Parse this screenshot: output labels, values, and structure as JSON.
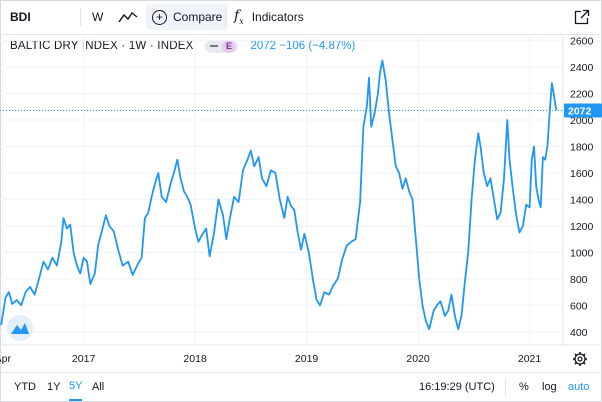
{
  "toolbar": {
    "symbol": "BDI",
    "interval": "W",
    "chart_type_icon": "line-chart-icon",
    "compare_label": "Compare",
    "indicators_label": "Indicators",
    "fx": "f",
    "fx_sub": "x"
  },
  "legend": {
    "title": "BALTIC DRY INDEX · 1W · INDEX",
    "badge": "E",
    "values": "2072 −106 (−4.87%)"
  },
  "colors": {
    "line": "#2196f3",
    "grid": "#f0f3fa",
    "axis_text": "#131722"
  },
  "last_price": "2072",
  "bottom": {
    "ranges": [
      "YTD",
      "1Y",
      "5Y",
      "All"
    ],
    "active_range": "5Y",
    "time": "16:19:29 (UTC)",
    "percent": "%",
    "log": "log",
    "auto": "auto"
  },
  "chart_data": {
    "type": "line",
    "title": "BALTIC DRY INDEX · 1W · INDEX",
    "xlabel": "",
    "ylabel": "",
    "ylim": [
      300,
      2650
    ],
    "xlim": [
      2016.25,
      2021.3
    ],
    "x_tick_labels": [
      {
        "label": "Apr",
        "x": 2016.27
      },
      {
        "label": "2017",
        "x": 2017.0
      },
      {
        "label": "2018",
        "x": 2018.0
      },
      {
        "label": "2019",
        "x": 2019.0
      },
      {
        "label": "2020",
        "x": 2020.0
      },
      {
        "label": "2021",
        "x": 2021.0
      }
    ],
    "y_ticks": [
      400,
      600,
      800,
      1000,
      1200,
      1400,
      1600,
      1800,
      2000,
      2200,
      2400,
      2600
    ],
    "grid": true,
    "series": [
      {
        "values": [
          [
            2016.26,
            450
          ],
          [
            2016.3,
            660
          ],
          [
            2016.33,
            700
          ],
          [
            2016.36,
            610
          ],
          [
            2016.4,
            640
          ],
          [
            2016.44,
            600
          ],
          [
            2016.48,
            700
          ],
          [
            2016.52,
            740
          ],
          [
            2016.56,
            680
          ],
          [
            2016.6,
            800
          ],
          [
            2016.64,
            930
          ],
          [
            2016.68,
            870
          ],
          [
            2016.72,
            960
          ],
          [
            2016.76,
            900
          ],
          [
            2016.8,
            1080
          ],
          [
            2016.82,
            1260
          ],
          [
            2016.85,
            1180
          ],
          [
            2016.88,
            1210
          ],
          [
            2016.91,
            1000
          ],
          [
            2016.94,
            900
          ],
          [
            2016.97,
            840
          ],
          [
            2017.0,
            960
          ],
          [
            2017.03,
            930
          ],
          [
            2017.06,
            760
          ],
          [
            2017.1,
            840
          ],
          [
            2017.13,
            1050
          ],
          [
            2017.16,
            1150
          ],
          [
            2017.2,
            1280
          ],
          [
            2017.23,
            1200
          ],
          [
            2017.27,
            1160
          ],
          [
            2017.31,
            1020
          ],
          [
            2017.35,
            900
          ],
          [
            2017.4,
            930
          ],
          [
            2017.44,
            830
          ],
          [
            2017.48,
            900
          ],
          [
            2017.52,
            960
          ],
          [
            2017.55,
            1260
          ],
          [
            2017.58,
            1300
          ],
          [
            2017.61,
            1420
          ],
          [
            2017.64,
            1520
          ],
          [
            2017.67,
            1600
          ],
          [
            2017.7,
            1420
          ],
          [
            2017.74,
            1380
          ],
          [
            2017.78,
            1520
          ],
          [
            2017.81,
            1600
          ],
          [
            2017.84,
            1700
          ],
          [
            2017.87,
            1560
          ],
          [
            2017.9,
            1460
          ],
          [
            2017.93,
            1420
          ],
          [
            2017.96,
            1360
          ],
          [
            2018.0,
            1180
          ],
          [
            2018.03,
            1080
          ],
          [
            2018.06,
            1130
          ],
          [
            2018.1,
            1180
          ],
          [
            2018.13,
            970
          ],
          [
            2018.17,
            1150
          ],
          [
            2018.21,
            1400
          ],
          [
            2018.25,
            1280
          ],
          [
            2018.28,
            1100
          ],
          [
            2018.31,
            1250
          ],
          [
            2018.35,
            1420
          ],
          [
            2018.39,
            1380
          ],
          [
            2018.43,
            1620
          ],
          [
            2018.47,
            1700
          ],
          [
            2018.5,
            1770
          ],
          [
            2018.53,
            1650
          ],
          [
            2018.57,
            1720
          ],
          [
            2018.6,
            1560
          ],
          [
            2018.64,
            1500
          ],
          [
            2018.68,
            1620
          ],
          [
            2018.72,
            1600
          ],
          [
            2018.76,
            1400
          ],
          [
            2018.8,
            1260
          ],
          [
            2018.83,
            1420
          ],
          [
            2018.86,
            1350
          ],
          [
            2018.89,
            1320
          ],
          [
            2018.92,
            1150
          ],
          [
            2018.95,
            1020
          ],
          [
            2018.98,
            1140
          ],
          [
            2019.02,
            1000
          ],
          [
            2019.06,
            780
          ],
          [
            2019.09,
            640
          ],
          [
            2019.12,
            600
          ],
          [
            2019.16,
            700
          ],
          [
            2019.2,
            680
          ],
          [
            2019.24,
            750
          ],
          [
            2019.28,
            800
          ],
          [
            2019.32,
            950
          ],
          [
            2019.36,
            1050
          ],
          [
            2019.4,
            1080
          ],
          [
            2019.44,
            1100
          ],
          [
            2019.48,
            1380
          ],
          [
            2019.51,
            1950
          ],
          [
            2019.54,
            2100
          ],
          [
            2019.56,
            2320
          ],
          [
            2019.58,
            1950
          ],
          [
            2019.61,
            2050
          ],
          [
            2019.64,
            2200
          ],
          [
            2019.66,
            2370
          ],
          [
            2019.68,
            2450
          ],
          [
            2019.71,
            2300
          ],
          [
            2019.74,
            2050
          ],
          [
            2019.77,
            1850
          ],
          [
            2019.8,
            1650
          ],
          [
            2019.83,
            1600
          ],
          [
            2019.86,
            1480
          ],
          [
            2019.89,
            1560
          ],
          [
            2019.92,
            1460
          ],
          [
            2019.95,
            1400
          ],
          [
            2019.97,
            1200
          ],
          [
            2019.99,
            1000
          ],
          [
            2020.01,
            800
          ],
          [
            2020.04,
            600
          ],
          [
            2020.07,
            480
          ],
          [
            2020.1,
            420
          ],
          [
            2020.14,
            560
          ],
          [
            2020.17,
            600
          ],
          [
            2020.2,
            630
          ],
          [
            2020.22,
            580
          ],
          [
            2020.24,
            520
          ],
          [
            2020.27,
            560
          ],
          [
            2020.3,
            680
          ],
          [
            2020.33,
            520
          ],
          [
            2020.36,
            420
          ],
          [
            2020.39,
            520
          ],
          [
            2020.42,
            780
          ],
          [
            2020.45,
            1000
          ],
          [
            2020.48,
            1400
          ],
          [
            2020.51,
            1700
          ],
          [
            2020.54,
            1900
          ],
          [
            2020.56,
            1800
          ],
          [
            2020.59,
            1600
          ],
          [
            2020.62,
            1500
          ],
          [
            2020.65,
            1560
          ],
          [
            2020.68,
            1400
          ],
          [
            2020.71,
            1250
          ],
          [
            2020.74,
            1300
          ],
          [
            2020.77,
            1550
          ],
          [
            2020.8,
            2000
          ],
          [
            2020.82,
            1700
          ],
          [
            2020.85,
            1480
          ],
          [
            2020.88,
            1280
          ],
          [
            2020.91,
            1150
          ],
          [
            2020.94,
            1200
          ],
          [
            2020.97,
            1360
          ],
          [
            2021.0,
            1340
          ],
          [
            2021.02,
            1700
          ],
          [
            2021.04,
            1800
          ],
          [
            2021.06,
            1500
          ],
          [
            2021.08,
            1400
          ],
          [
            2021.1,
            1340
          ],
          [
            2021.12,
            1720
          ],
          [
            2021.14,
            1700
          ],
          [
            2021.16,
            1800
          ],
          [
            2021.18,
            2050
          ],
          [
            2021.2,
            2280
          ],
          [
            2021.22,
            2180
          ],
          [
            2021.24,
            2072
          ]
        ]
      }
    ]
  }
}
